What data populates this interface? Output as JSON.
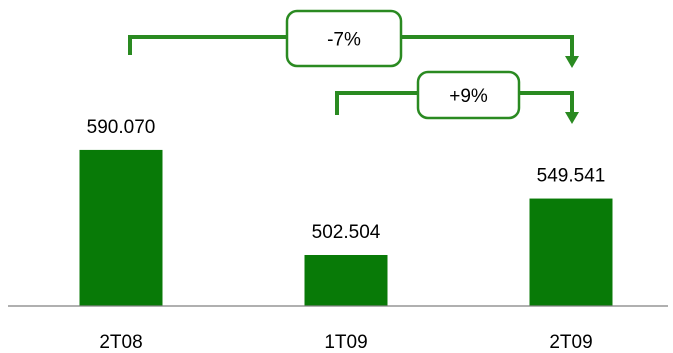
{
  "chart_data": {
    "type": "bar",
    "categories": [
      "2T08",
      "1T09",
      "2T09"
    ],
    "values": [
      590.07,
      502.504,
      549.541
    ],
    "value_labels": [
      "590.070",
      "502.504",
      "549.541"
    ],
    "ylim": [
      460,
      610
    ],
    "grid": false,
    "legend": "none",
    "title": "",
    "xlabel": "",
    "ylabel": "",
    "annotations": [
      {
        "label": "-7%",
        "from": "2T08",
        "to": "2T09"
      },
      {
        "label": "+9%",
        "from": "1T09",
        "to": "2T09"
      }
    ]
  },
  "colors": {
    "bar": "#087a07",
    "arrow": "#2a8a21",
    "axis": "#808080",
    "text": "#000000"
  }
}
